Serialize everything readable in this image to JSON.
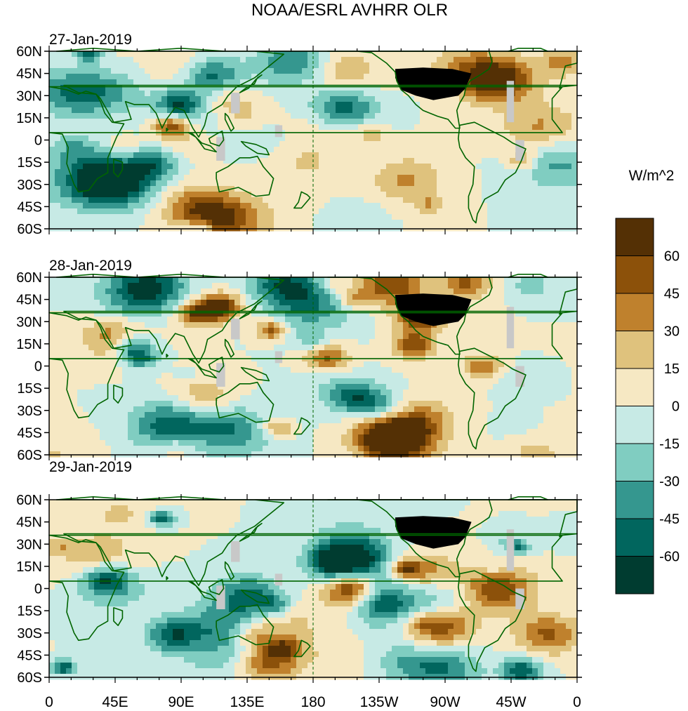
{
  "chart_data": {
    "type": "heatmap",
    "title": "NOAA/ESRL AVHRR OLR",
    "units_label": "W/m^2",
    "panels": [
      {
        "date": "27-Jan-2019",
        "seed": 11
      },
      {
        "date": "28-Jan-2019",
        "seed": 47
      },
      {
        "date": "29-Jan-2019",
        "seed": 83
      }
    ],
    "lat_ticks": [
      "60N",
      "45N",
      "30N",
      "15N",
      "0",
      "15S",
      "30S",
      "45S",
      "60S"
    ],
    "lat_values": [
      60,
      45,
      30,
      15,
      0,
      -15,
      -30,
      -45,
      -60
    ],
    "lon_ticks": [
      "0",
      "45E",
      "90E",
      "135E",
      "180",
      "135W",
      "90W",
      "45W",
      "0"
    ],
    "lon_values": [
      0,
      45,
      90,
      135,
      180,
      225,
      270,
      315,
      360
    ],
    "ylim": [
      -60,
      60
    ],
    "xlim": [
      0,
      360
    ],
    "colorbar": {
      "levels": [
        "60",
        "45",
        "30",
        "15",
        "0",
        "-15",
        "-30",
        "-45",
        "-60"
      ],
      "level_values": [
        60,
        45,
        30,
        15,
        0,
        -15,
        -30,
        -45,
        -60
      ],
      "colors": [
        "#543005",
        "#8c510a",
        "#bf812d",
        "#dfc27d",
        "#f6e8c3",
        "#c7eae5",
        "#80cdc1",
        "#35978f",
        "#01665e",
        "#003c30"
      ]
    },
    "missing_color": "#c8c8c8",
    "coast_color": "#006400"
  }
}
